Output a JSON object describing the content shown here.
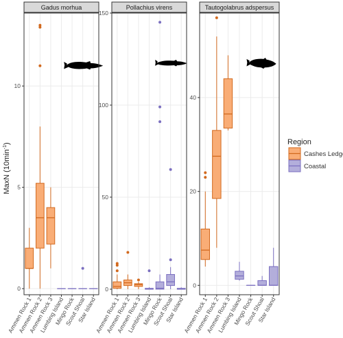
{
  "chart_data": {
    "type": "boxplot",
    "ylabel_main": "MaxN (10min",
    "ylabel_sup": "-1",
    "ylabel_close": ")",
    "legend": {
      "title": "Region",
      "placement": "right",
      "entries": [
        {
          "name": "Cashes Ledge",
          "fill": "#f9ad76",
          "stroke": "#d2691e"
        },
        {
          "name": "Coastal",
          "fill": "#b3aedb",
          "stroke": "#7b6fc0"
        }
      ]
    },
    "colors": {
      "panel_bg": "#ffffff",
      "strip_bg": "#d9d9d9",
      "grid": "#ebebeb",
      "frame": "#333333",
      "silhouette": "#000000"
    },
    "panels": [
      {
        "title": "Gadus morhua",
        "ylim": [
          -0.3,
          13.6
        ],
        "yticks": [
          0,
          5,
          10
        ],
        "icon": "cod-silhouette-icon",
        "categories": [
          "Ammen Rock 1",
          "Ammen Rock 2",
          "Ammen Rock 3",
          "Lumbing Island",
          "Mingo Rock",
          "Scout Shoal",
          "Star Island"
        ],
        "boxes": [
          {
            "region": "Cashes Ledge",
            "min": 0,
            "q1": 1,
            "median": 1,
            "q3": 2,
            "max": 3,
            "outliers": []
          },
          {
            "region": "Cashes Ledge",
            "min": 0,
            "q1": 2,
            "median": 3.5,
            "q3": 5.2,
            "max": 8,
            "outliers": [
              11,
              12.9,
              13
            ]
          },
          {
            "region": "Cashes Ledge",
            "min": 1,
            "q1": 2.2,
            "median": 3.5,
            "q3": 4,
            "max": 5,
            "outliers": []
          },
          {
            "region": "Coastal",
            "min": 0,
            "q1": 0,
            "median": 0,
            "q3": 0,
            "max": 0,
            "outliers": []
          },
          {
            "region": "Coastal",
            "min": 0,
            "q1": 0,
            "median": 0,
            "q3": 0,
            "max": 0,
            "outliers": []
          },
          {
            "region": "Coastal",
            "min": 0,
            "q1": 0,
            "median": 0,
            "q3": 0,
            "max": 0,
            "outliers": [
              1
            ]
          },
          {
            "region": "Coastal",
            "min": 0,
            "q1": 0,
            "median": 0,
            "q3": 0,
            "max": 0,
            "outliers": []
          }
        ]
      },
      {
        "title": "Pollachius virens",
        "ylim": [
          -3,
          150
        ],
        "yticks": [
          0,
          50,
          100,
          150
        ],
        "icon": "pollock-silhouette-icon",
        "categories": [
          "Ammen Rock 1",
          "Ammen Rock 2",
          "Ammen Rock 3",
          "Lumbing Island",
          "Mingo Rock",
          "Scout Shoal",
          "Star Island"
        ],
        "boxes": [
          {
            "region": "Cashes Ledge",
            "min": 0,
            "q1": 0.5,
            "median": 1.5,
            "q3": 4,
            "max": 8,
            "outliers": [
              10,
              13,
              14
            ]
          },
          {
            "region": "Cashes Ledge",
            "min": 0,
            "q1": 2,
            "median": 3.5,
            "q3": 5,
            "max": 8,
            "outliers": [
              20
            ]
          },
          {
            "region": "Cashes Ledge",
            "min": 0,
            "q1": 1.5,
            "median": 2.5,
            "q3": 3,
            "max": 4,
            "outliers": [
              5
            ]
          },
          {
            "region": "Coastal",
            "min": 0,
            "q1": 0,
            "median": 0,
            "q3": 0.5,
            "max": 1,
            "outliers": [
              10
            ]
          },
          {
            "region": "Coastal",
            "min": 0,
            "q1": 0,
            "median": 0.5,
            "q3": 4,
            "max": 8,
            "outliers": [
              91,
              99,
              145
            ]
          },
          {
            "region": "Coastal",
            "min": 0,
            "q1": 2,
            "median": 4,
            "q3": 8,
            "max": 12,
            "outliers": [
              16,
              65
            ]
          },
          {
            "region": "Coastal",
            "min": 0,
            "q1": 0,
            "median": 0,
            "q3": 0.5,
            "max": 1,
            "outliers": []
          }
        ]
      },
      {
        "title": "Tautogolabrus adspersus",
        "ylim": [
          -2,
          58
        ],
        "yticks": [
          0,
          20,
          40
        ],
        "icon": "cunner-silhouette-icon",
        "categories": [
          "Ammen Rock 1",
          "Ammen Rock 2",
          "Ammen Rock 3",
          "Lumbing Island",
          "Mingo Rock",
          "Scout Shoal",
          "Star Island"
        ],
        "boxes": [
          {
            "region": "Cashes Ledge",
            "min": 4,
            "q1": 5.5,
            "median": 7.5,
            "q3": 12,
            "max": 20,
            "outliers": [
              23,
              24
            ]
          },
          {
            "region": "Cashes Ledge",
            "min": 8,
            "q1": 18.5,
            "median": 27.5,
            "q3": 33,
            "max": 53,
            "outliers": [
              57
            ]
          },
          {
            "region": "Cashes Ledge",
            "min": 33,
            "q1": 33.5,
            "median": 36.5,
            "q3": 44,
            "max": 49,
            "outliers": []
          },
          {
            "region": "Coastal",
            "min": 1,
            "q1": 1.3,
            "median": 2,
            "q3": 3,
            "max": 5,
            "outliers": []
          },
          {
            "region": "Coastal",
            "min": 0,
            "q1": 0,
            "median": 0,
            "q3": 0,
            "max": 0,
            "outliers": []
          },
          {
            "region": "Coastal",
            "min": 0,
            "q1": 0,
            "median": 0,
            "q3": 1,
            "max": 2,
            "outliers": []
          },
          {
            "region": "Coastal",
            "min": 0,
            "q1": 0,
            "median": 0,
            "q3": 4,
            "max": 8,
            "outliers": []
          }
        ]
      }
    ]
  }
}
